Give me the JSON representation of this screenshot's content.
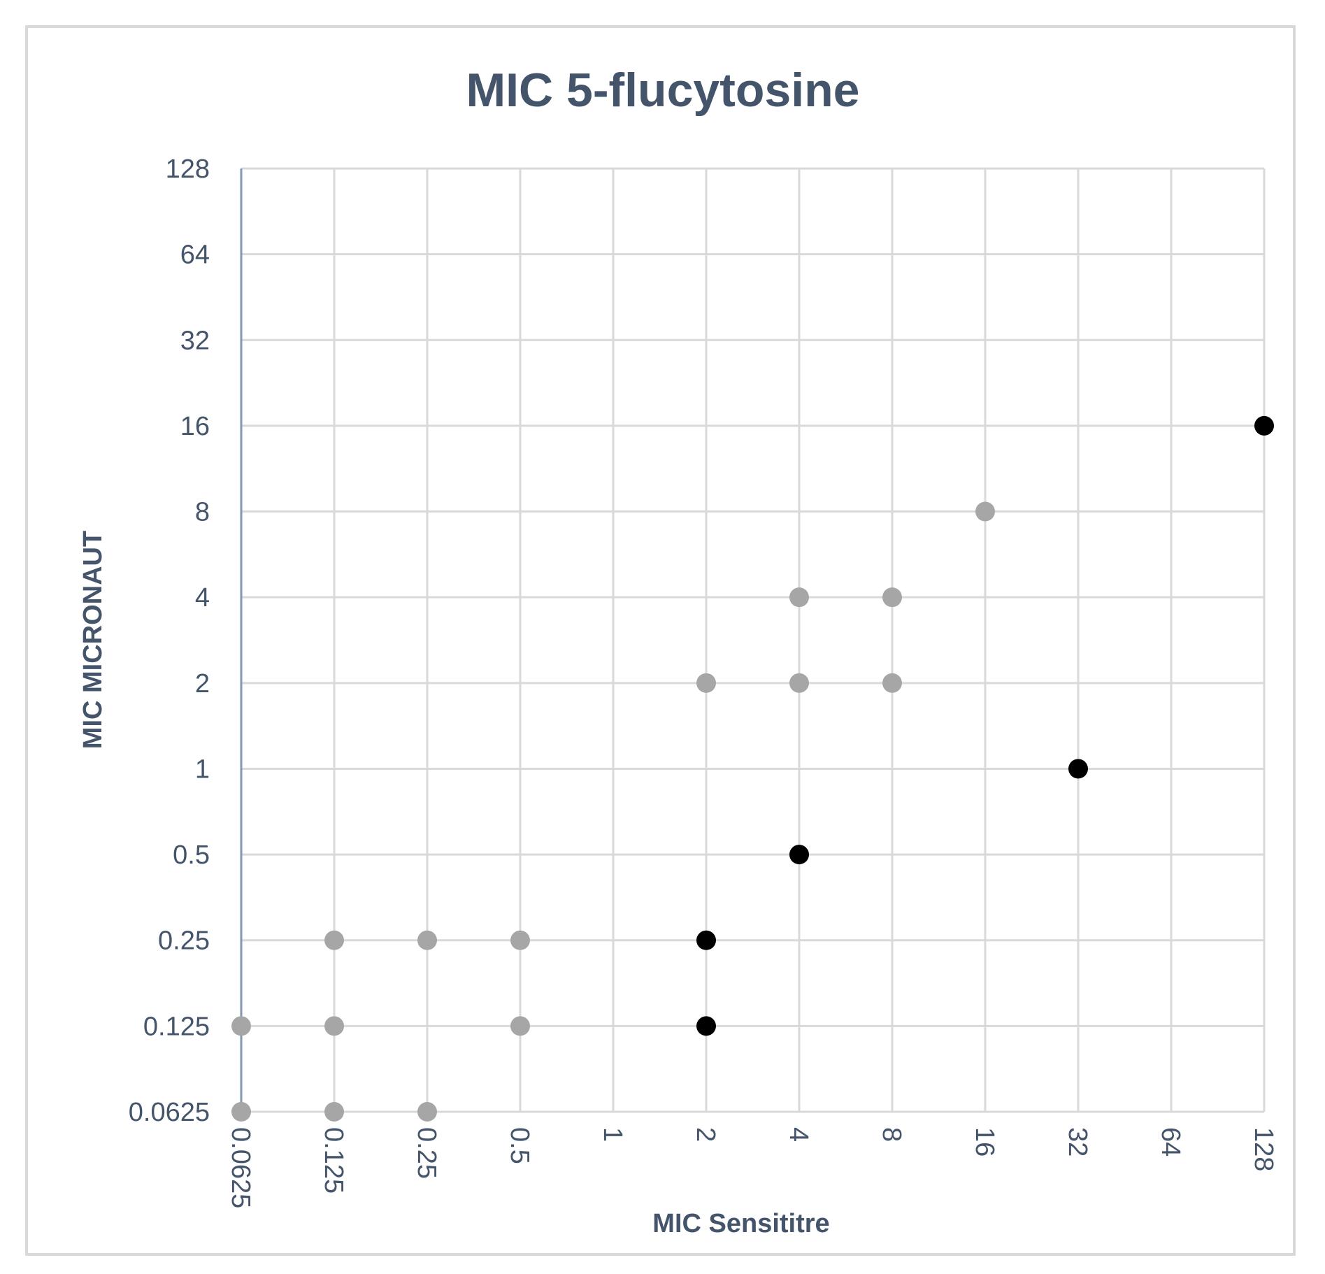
{
  "chart_data": {
    "type": "scatter",
    "title": "MIC 5-flucytosine",
    "xlabel": "MIC Sensititre",
    "ylabel": "MIC MICRONAUT",
    "x_scale": "log2",
    "y_scale": "log2",
    "xlim": [
      0.0625,
      128
    ],
    "ylim": [
      0.0625,
      128
    ],
    "x_ticks": [
      "0.0625",
      "0.125",
      "0.25",
      "0.5",
      "1",
      "2",
      "4",
      "8",
      "16",
      "32",
      "64",
      "128"
    ],
    "y_ticks": [
      "0.0625",
      "0.125",
      "0.25",
      "0.5",
      "1",
      "2",
      "4",
      "8",
      "16",
      "32",
      "64",
      "128"
    ],
    "grid": true,
    "legend": "none",
    "series": [
      {
        "color": "#a6a6a6",
        "points": [
          {
            "x": 0.0625,
            "y": 0.0625
          },
          {
            "x": 0.0625,
            "y": 0.125
          },
          {
            "x": 0.125,
            "y": 0.0625
          },
          {
            "x": 0.125,
            "y": 0.125
          },
          {
            "x": 0.125,
            "y": 0.25
          },
          {
            "x": 0.25,
            "y": 0.0625
          },
          {
            "x": 0.25,
            "y": 0.25
          },
          {
            "x": 0.5,
            "y": 0.125
          },
          {
            "x": 0.5,
            "y": 0.25
          },
          {
            "x": 2,
            "y": 2
          },
          {
            "x": 4,
            "y": 2
          },
          {
            "x": 4,
            "y": 4
          },
          {
            "x": 8,
            "y": 2
          },
          {
            "x": 8,
            "y": 4
          },
          {
            "x": 16,
            "y": 8
          }
        ]
      },
      {
        "color": "#000000",
        "points": [
          {
            "x": 2,
            "y": 0.125
          },
          {
            "x": 2,
            "y": 0.25
          },
          {
            "x": 4,
            "y": 0.5
          },
          {
            "x": 32,
            "y": 1
          },
          {
            "x": 128,
            "y": 16
          }
        ]
      }
    ]
  }
}
